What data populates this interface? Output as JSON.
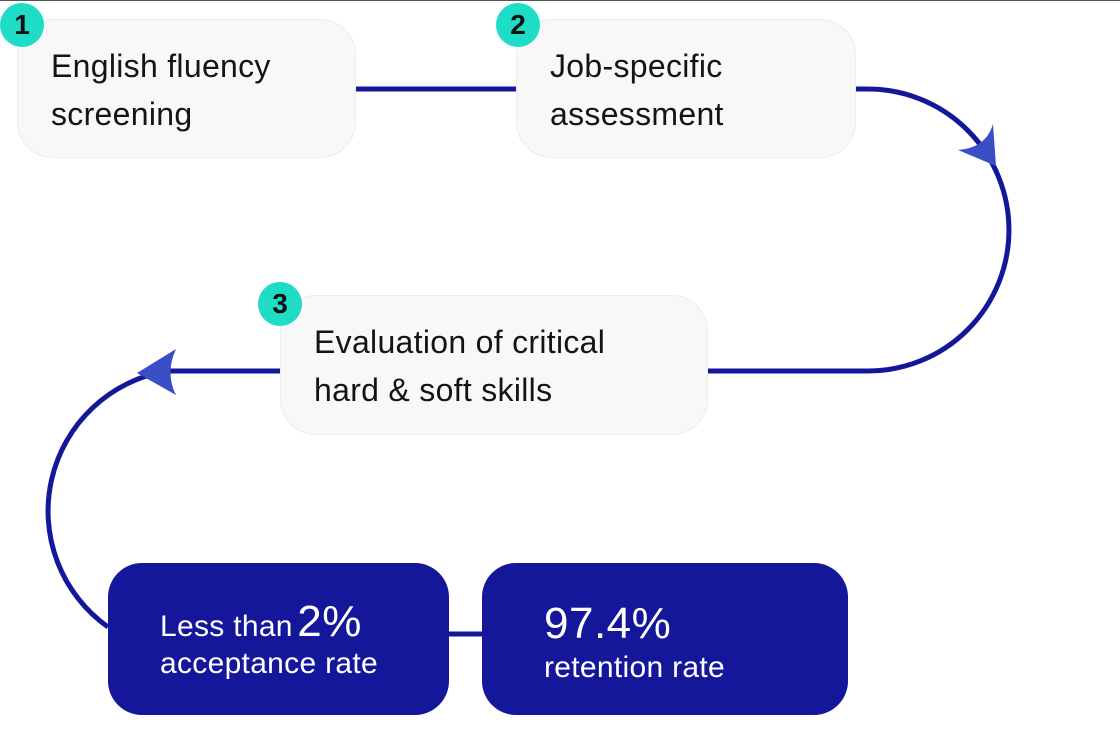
{
  "steps": [
    {
      "number": "1",
      "label": "English fluency\nscreening"
    },
    {
      "number": "2",
      "label": "Job-specific\nassessment"
    },
    {
      "number": "3",
      "label": "Evaluation of critical\nhard & soft skills"
    }
  ],
  "stats": [
    {
      "prefix": "Less than",
      "value": "2%",
      "caption": "acceptance rate"
    },
    {
      "value": "97.4%",
      "caption": "retention rate"
    }
  ],
  "colors": {
    "connector": "#14179a",
    "arrowhead": "#3a4fc6",
    "badge": "#1fdcc7",
    "step_card_bg": "#f8f8f8",
    "stat_card_bg": "#14179a"
  }
}
